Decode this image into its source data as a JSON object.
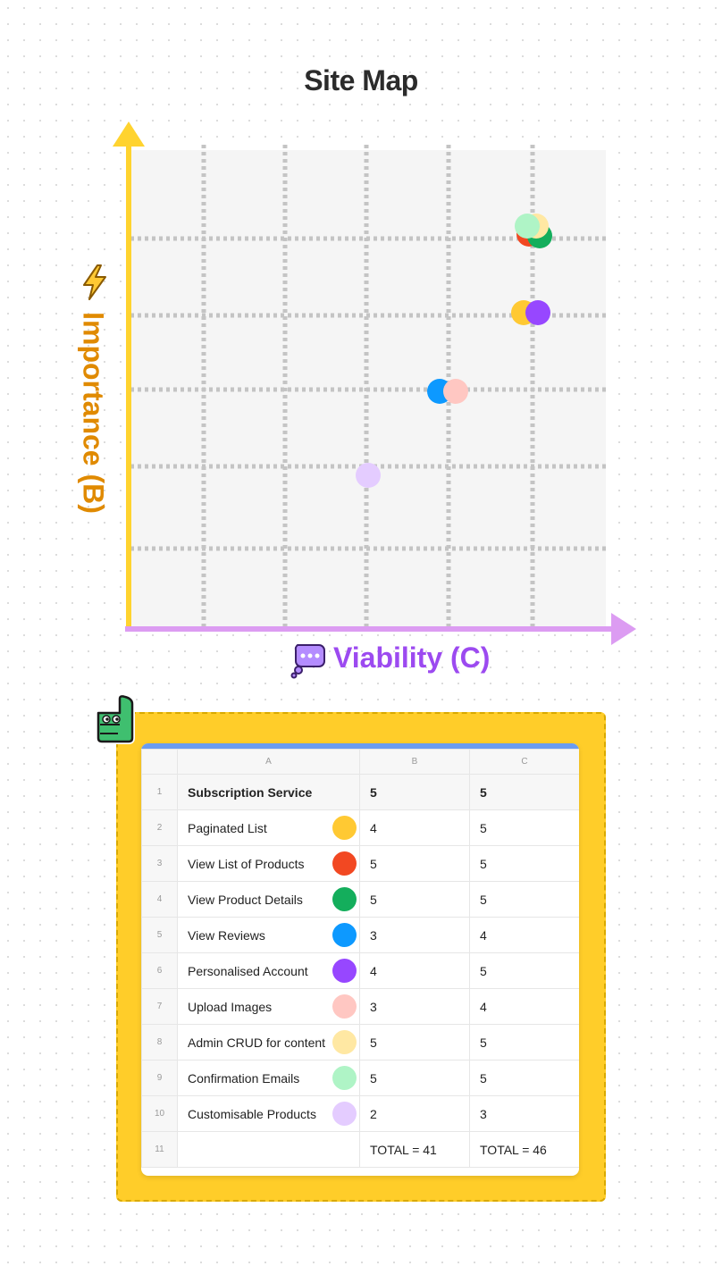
{
  "chart_data": {
    "type": "scatter",
    "title": "Site Map",
    "xlabel": "Viability (C)",
    "ylabel": "Importance (B)",
    "xlim": [
      0,
      5
    ],
    "ylim": [
      0,
      5
    ],
    "grid": true,
    "points": [
      {
        "name": "Paginated List",
        "x": 5,
        "y": 4,
        "color": "#ffc933"
      },
      {
        "name": "View List of Products",
        "x": 5,
        "y": 5,
        "color": "#f24822"
      },
      {
        "name": "View Product Details",
        "x": 5,
        "y": 5,
        "color": "#14ae5c"
      },
      {
        "name": "View Reviews",
        "x": 4,
        "y": 3,
        "color": "#0d99ff"
      },
      {
        "name": "Personalised Account",
        "x": 5,
        "y": 4,
        "color": "#9747ff"
      },
      {
        "name": "Upload Images",
        "x": 4,
        "y": 3,
        "color": "#ffc7c2"
      },
      {
        "name": "Admin CRUD for content",
        "x": 5,
        "y": 5,
        "color": "#ffe8a3"
      },
      {
        "name": "Confirmation Emails",
        "x": 5,
        "y": 5,
        "color": "#aff4c6"
      },
      {
        "name": "Customisable Products",
        "x": 3,
        "y": 2,
        "color": "#e4ccff"
      }
    ]
  },
  "colors": {
    "y_axis": "#ffd32f",
    "x_axis": "#dc9cf2",
    "ylabel": "#e08a00",
    "xlabel": "#9c4af0",
    "note": "#ffcd29"
  },
  "icons": {
    "y_axis_icon": "lightning-bolt-icon",
    "x_axis_icon": "thought-bubble-icon",
    "sticker": "thumbs-up-sticker"
  },
  "table": {
    "columns": [
      "A",
      "B",
      "C"
    ],
    "rows": [
      {
        "n": "1",
        "name": "Subscription Service",
        "b": "5",
        "c": "5",
        "color": ""
      },
      {
        "n": "2",
        "name": "Paginated List",
        "b": "4",
        "c": "5",
        "color": "#ffc933"
      },
      {
        "n": "3",
        "name": "View List of Products",
        "b": "5",
        "c": "5",
        "color": "#f24822"
      },
      {
        "n": "4",
        "name": "View Product Details",
        "b": "5",
        "c": "5",
        "color": "#14ae5c"
      },
      {
        "n": "5",
        "name": "View Reviews",
        "b": "3",
        "c": "4",
        "color": "#0d99ff"
      },
      {
        "n": "6",
        "name": "Personalised Account",
        "b": "4",
        "c": "5",
        "color": "#9747ff"
      },
      {
        "n": "7",
        "name": "Upload Images",
        "b": "3",
        "c": "4",
        "color": "#ffc7c2"
      },
      {
        "n": "8",
        "name": "Admin CRUD for content",
        "b": "5",
        "c": "5",
        "color": "#ffe8a3"
      },
      {
        "n": "9",
        "name": "Confirmation Emails",
        "b": "5",
        "c": "5",
        "color": "#aff4c6"
      },
      {
        "n": "10",
        "name": "Customisable Products",
        "b": "2",
        "c": "3",
        "color": "#e4ccff"
      },
      {
        "n": "11",
        "name": "",
        "b": "TOTAL = 41",
        "c": "TOTAL = 46",
        "color": ""
      }
    ]
  }
}
